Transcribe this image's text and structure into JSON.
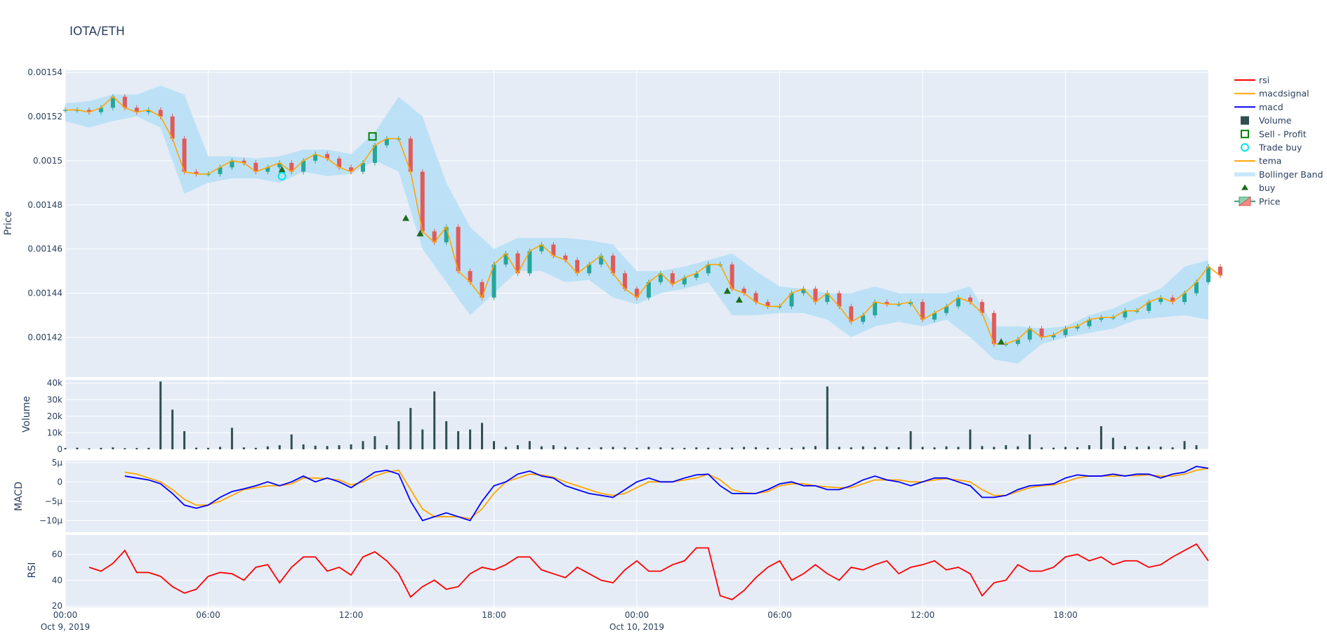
{
  "title": "IOTA/ETH",
  "chart_data": [
    {
      "type": "candlestick",
      "panel": "price",
      "ylabel": "Price",
      "ylim": [
        0.001402,
        0.001541
      ],
      "yticks": [
        "0.00142",
        "0.00144",
        "0.00146",
        "0.00148",
        "0.0015",
        "0.00152",
        "0.00154"
      ],
      "ytick_values": [
        0.00142,
        0.00144,
        0.00146,
        0.00148,
        0.0015,
        0.00152,
        0.00154
      ],
      "x_start": "Oct 9, 2019 00:00",
      "x_step_minutes": 30,
      "close": [
        0.001523,
        0.001523,
        0.001522,
        0.001524,
        0.001529,
        0.001524,
        0.001522,
        0.001523,
        0.00152,
        0.00151,
        0.001495,
        0.001494,
        0.001494,
        0.001497,
        0.0015,
        0.001499,
        0.001495,
        0.001497,
        0.001499,
        0.001495,
        0.0015,
        0.001503,
        0.001501,
        0.001497,
        0.001495,
        0.001499,
        0.001507,
        0.00151,
        0.00151,
        0.001495,
        0.001468,
        0.001463,
        0.00147,
        0.00145,
        0.001445,
        0.001438,
        0.001453,
        0.001458,
        0.001449,
        0.001459,
        0.001462,
        0.001457,
        0.001455,
        0.001449,
        0.001453,
        0.001457,
        0.001449,
        0.001442,
        0.001438,
        0.001445,
        0.001449,
        0.001444,
        0.001447,
        0.001449,
        0.001453,
        0.001453,
        0.001442,
        0.00144,
        0.001436,
        0.001434,
        0.001434,
        0.00144,
        0.001442,
        0.001436,
        0.00144,
        0.001434,
        0.001427,
        0.00143,
        0.001436,
        0.001435,
        0.001435,
        0.001436,
        0.001428,
        0.001431,
        0.001434,
        0.001438,
        0.001436,
        0.001431,
        0.001417,
        0.001417,
        0.001419,
        0.001424,
        0.00142,
        0.001421,
        0.001424,
        0.001425,
        0.001428,
        0.001429,
        0.001429,
        0.001432,
        0.001432,
        0.001436,
        0.001438,
        0.001436,
        0.00144,
        0.001445,
        0.001452,
        0.001448
      ],
      "increasing_color": "#26a69a",
      "decreasing_color": "#e05a5a",
      "legend": "Price"
    },
    {
      "type": "line",
      "panel": "price",
      "name": "tema",
      "color": "#ffa500",
      "source": "close"
    },
    {
      "type": "area",
      "panel": "price",
      "name": "Bollinger Band",
      "color": "#b9e0f5",
      "x_step_minutes": 60,
      "upper": [
        0.001526,
        0.001527,
        0.00153,
        0.00153,
        0.001534,
        0.00153,
        0.001502,
        0.001502,
        0.001501,
        0.001502,
        0.001505,
        0.001505,
        0.001503,
        0.001513,
        0.001529,
        0.00152,
        0.00149,
        0.00147,
        0.00146,
        0.001465,
        0.001465,
        0.001465,
        0.001464,
        0.001462,
        0.00145,
        0.00145,
        0.001452,
        0.001455,
        0.001458,
        0.00145,
        0.001443,
        0.001442,
        0.00144,
        0.00144,
        0.001443,
        0.00144,
        0.00144,
        0.00144,
        0.001443,
        0.001425,
        0.001425,
        0.001424,
        0.001425,
        0.00143,
        0.001433,
        0.001438,
        0.001442,
        0.001452,
        0.001455
      ],
      "lower": [
        0.001518,
        0.001515,
        0.001518,
        0.00152,
        0.001515,
        0.001485,
        0.00149,
        0.001492,
        0.001492,
        0.00149,
        0.001495,
        0.001493,
        0.001494,
        0.0015,
        0.001495,
        0.00146,
        0.001445,
        0.00143,
        0.00144,
        0.00145,
        0.00145,
        0.001445,
        0.001446,
        0.001438,
        0.001435,
        0.00144,
        0.001442,
        0.001445,
        0.00143,
        0.00143,
        0.001431,
        0.001431,
        0.001428,
        0.00142,
        0.001425,
        0.001427,
        0.001425,
        0.001428,
        0.00142,
        0.00141,
        0.001408,
        0.001417,
        0.00142,
        0.001422,
        0.001424,
        0.001428,
        0.001429,
        0.00143,
        0.001428
      ]
    },
    {
      "type": "scatter",
      "panel": "price",
      "markers": [
        {
          "name": "buy",
          "symbol": "triangle-up",
          "color": "#1a6e1a",
          "points": [
            [
              9.1,
              0.001496
            ],
            [
              14.3,
              0.001474
            ],
            [
              14.9,
              0.001467
            ],
            [
              27.8,
              0.001441
            ],
            [
              28.3,
              0.001437
            ],
            [
              39.3,
              0.001418
            ]
          ]
        },
        {
          "name": "Trade buy",
          "symbol": "circle-open",
          "color": "#00e5ee",
          "points": [
            [
              9.1,
              0.001493
            ]
          ]
        },
        {
          "name": "Sell - Profit",
          "symbol": "square-open",
          "color": "#008000",
          "points": [
            [
              12.9,
              0.001511
            ]
          ]
        }
      ]
    },
    {
      "type": "bar",
      "panel": "volume",
      "name": "Volume",
      "color": "#2f4f4f",
      "ylabel": "Volume",
      "ylim": [
        0,
        42000
      ],
      "yticks": [
        "0",
        "10k",
        "20k",
        "30k",
        "40k"
      ],
      "ytick_values": [
        0,
        10000,
        20000,
        30000,
        40000
      ],
      "x_step_minutes": 30,
      "values": [
        800,
        1000,
        600,
        900,
        1200,
        700,
        800,
        900,
        41000,
        24000,
        11000,
        1000,
        900,
        1500,
        13000,
        1200,
        900,
        1800,
        2500,
        9000,
        3000,
        2200,
        2000,
        2500,
        3000,
        5000,
        8000,
        2500,
        17000,
        25000,
        12000,
        35000,
        17000,
        11000,
        12000,
        16000,
        5000,
        1500,
        2500,
        5000,
        1800,
        2500,
        1500,
        1200,
        1000,
        1300,
        1500,
        1200,
        1000,
        1500,
        1200,
        1000,
        900,
        1200,
        1000,
        900,
        1100,
        1500,
        1300,
        1000,
        800,
        900,
        1500,
        2000,
        38000,
        1500,
        1200,
        1800,
        1400,
        1600,
        1300,
        11000,
        1500,
        1200,
        1800,
        1500,
        12000,
        2000,
        1500,
        2500,
        1800,
        9000,
        1200,
        1000,
        1500,
        1300,
        2500,
        14000,
        7000,
        2000,
        1500,
        1800,
        1600,
        1200,
        5000,
        2500
      ]
    },
    {
      "type": "line",
      "panel": "macd",
      "ylabel": "MACD",
      "ylim": [
        -13,
        5.5
      ],
      "yticks": [
        "−10µ",
        "−5µ",
        "0",
        "5µ"
      ],
      "ytick_values": [
        -10,
        -5,
        0,
        5
      ],
      "unit": "µ",
      "x_step_minutes": 30,
      "series": [
        {
          "name": "macd",
          "color": "#0000ff",
          "values": [
            null,
            null,
            null,
            null,
            null,
            1.5,
            1,
            0.5,
            -0.5,
            -3,
            -6,
            -6.8,
            -6,
            -4,
            -2.5,
            -1.8,
            -1,
            0,
            -1,
            0,
            1.5,
            0,
            1,
            0,
            -1.5,
            0.5,
            2.5,
            3,
            2,
            -5,
            -10,
            -9,
            -8,
            -9,
            -10,
            -5,
            -1,
            0,
            2,
            2.8,
            1.5,
            1,
            -1,
            -2,
            -3,
            -3.5,
            -4,
            -2,
            0,
            1,
            0,
            0,
            1,
            1.8,
            2,
            -1,
            -3,
            -3,
            -3,
            -2,
            -0.5,
            0,
            -1,
            -1,
            -2,
            -2,
            -1,
            0.5,
            1.5,
            0.5,
            0,
            -1,
            0,
            1,
            1,
            0,
            -1,
            -4,
            -4,
            -3.5,
            -2,
            -1,
            -0.8,
            -0.5,
            1,
            1.8,
            1.5,
            1.5,
            2,
            1.5,
            2,
            2,
            1,
            2,
            2.5,
            4,
            3.5
          ]
        },
        {
          "name": "macdsignal",
          "color": "#ffa500",
          "values": [
            null,
            null,
            null,
            null,
            null,
            2.5,
            2,
            1,
            0,
            -2,
            -4.5,
            -6,
            -6,
            -5,
            -3.5,
            -2,
            -1.5,
            -1,
            -1,
            -0.5,
            1,
            1,
            0.8,
            0.5,
            -0.8,
            0,
            1.5,
            2.5,
            3,
            -2,
            -7,
            -9,
            -9,
            -9,
            -9.5,
            -7,
            -3,
            0,
            1,
            2,
            1.8,
            1.2,
            0,
            -1,
            -2,
            -3,
            -3.5,
            -3,
            -1.5,
            0,
            0,
            0,
            0.5,
            1,
            2,
            0.5,
            -2,
            -2.8,
            -3,
            -2.5,
            -1,
            -0.5,
            -0.5,
            -1,
            -1.3,
            -1.5,
            -1.5,
            -0.5,
            0.5,
            0.5,
            0.5,
            0,
            0,
            0.5,
            0.8,
            0.5,
            0,
            -2,
            -3.5,
            -3.5,
            -2.5,
            -1.5,
            -1,
            -0.8,
            0,
            1,
            1.5,
            1.5,
            1.5,
            1.6,
            1.6,
            1.8,
            1.5,
            1.5,
            2,
            3,
            3.5
          ]
        }
      ]
    },
    {
      "type": "line",
      "panel": "rsi",
      "ylabel": "RSI",
      "ylim": [
        19,
        75
      ],
      "yticks": [
        "20",
        "40",
        "60"
      ],
      "ytick_values": [
        20,
        40,
        60
      ],
      "x_step_minutes": 30,
      "series": [
        {
          "name": "rsi",
          "color": "#ff0000",
          "values": [
            null,
            null,
            50,
            47,
            53,
            63,
            46,
            46,
            43,
            35,
            30,
            33,
            43,
            46,
            45,
            40,
            50,
            52,
            38,
            50,
            58,
            58,
            47,
            50,
            44,
            58,
            62,
            55,
            45,
            27,
            35,
            40,
            33,
            35,
            45,
            50,
            48,
            52,
            58,
            58,
            48,
            45,
            42,
            50,
            45,
            40,
            38,
            48,
            55,
            47,
            47,
            52,
            55,
            65,
            65,
            28,
            25,
            32,
            42,
            50,
            55,
            40,
            45,
            52,
            45,
            40,
            50,
            48,
            52,
            55,
            45,
            50,
            52,
            55,
            48,
            50,
            45,
            28,
            38,
            40,
            52,
            47,
            47,
            50,
            58,
            60,
            55,
            58,
            52,
            55,
            55,
            50,
            52,
            58,
            63,
            68,
            55
          ]
        }
      ]
    }
  ],
  "xaxis": {
    "ticks": [
      "00:00",
      "06:00",
      "12:00",
      "18:00",
      "00:00",
      "06:00",
      "12:00",
      "18:00"
    ],
    "tick_hours": [
      0,
      6,
      12,
      18,
      24,
      30,
      36,
      42
    ],
    "date_labels": [
      {
        "hour": 0,
        "label": "Oct 9, 2019"
      },
      {
        "hour": 24,
        "label": "Oct 10, 2019"
      }
    ],
    "range_hours": [
      0,
      48
    ]
  },
  "legend": {
    "placement": "right",
    "items": [
      {
        "label": "rsi",
        "kind": "line",
        "color": "#ff0000"
      },
      {
        "label": "macdsignal",
        "kind": "line",
        "color": "#ffa500"
      },
      {
        "label": "macd",
        "kind": "line",
        "color": "#0000ff"
      },
      {
        "label": "Volume",
        "kind": "square",
        "color": "#2f4f4f"
      },
      {
        "label": "Sell - Profit",
        "kind": "square-open",
        "color": "#008000"
      },
      {
        "label": "Trade buy",
        "kind": "circle-open",
        "color": "#00e5ee"
      },
      {
        "label": "tema",
        "kind": "line",
        "color": "#ffa500"
      },
      {
        "label": "Bollinger Band",
        "kind": "band",
        "color": "#c8e8f8"
      },
      {
        "label": "buy",
        "kind": "triangle",
        "color": "#1a6e1a"
      },
      {
        "label": "Price",
        "kind": "candle",
        "color": "#26a69a"
      }
    ]
  }
}
